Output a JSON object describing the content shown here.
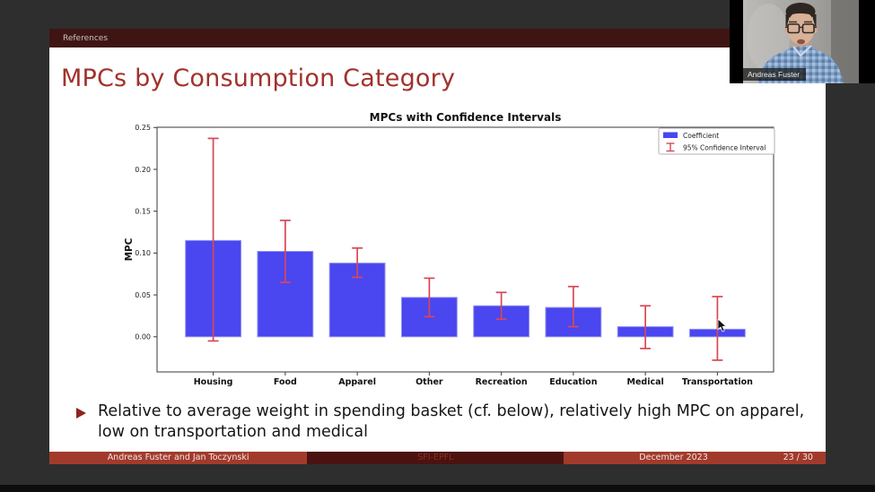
{
  "window": {
    "background": "#2e2e2e"
  },
  "webcam": {
    "name_label": "Andreas Fuster"
  },
  "slide": {
    "nav": {
      "label": "References"
    },
    "title": "MPCs by Consumption Category",
    "bullet": {
      "text": "Relative to average weight in spending basket (cf. below), relatively high MPC on apparel, low on transportation and medical"
    },
    "footer": {
      "authors": "Andreas Fuster and Jan Toczynski",
      "institution": "SFI-EPFL",
      "date": "December 2023",
      "page": "23 / 30"
    }
  },
  "colors": {
    "nav_maroon": "#3f1514",
    "title_red": "#a1322b",
    "footer_red": "#a23a2c",
    "footer_dark": "#4a1310",
    "bar_blue": "#4a46f0",
    "bar_edge": "#9090f2",
    "error_red": "#d84756"
  },
  "chart_data": {
    "type": "bar",
    "title": "MPCs with Confidence Intervals",
    "xlabel": "",
    "ylabel": "MPC",
    "categories": [
      "Housing",
      "Food",
      "Apparel",
      "Other",
      "Recreation",
      "Education",
      "Medical",
      "Transportation"
    ],
    "series": [
      {
        "name": "Coefficient",
        "values": [
          0.115,
          0.102,
          0.088,
          0.047,
          0.037,
          0.035,
          0.012,
          0.009
        ]
      },
      {
        "name": "95% Confidence Interval",
        "ci_low": [
          -0.005,
          0.065,
          0.071,
          0.024,
          0.021,
          0.012,
          -0.014,
          -0.028
        ],
        "ci_high": [
          0.237,
          0.139,
          0.106,
          0.07,
          0.053,
          0.06,
          0.037,
          0.048
        ]
      }
    ],
    "yticks": [
      0.0,
      0.05,
      0.1,
      0.15,
      0.2,
      0.25
    ],
    "ylim": [
      -0.042,
      0.2503
    ],
    "grid": false,
    "legend": {
      "position": "upper right",
      "entries": [
        "Coefficient",
        "95% Confidence Interval"
      ]
    }
  }
}
